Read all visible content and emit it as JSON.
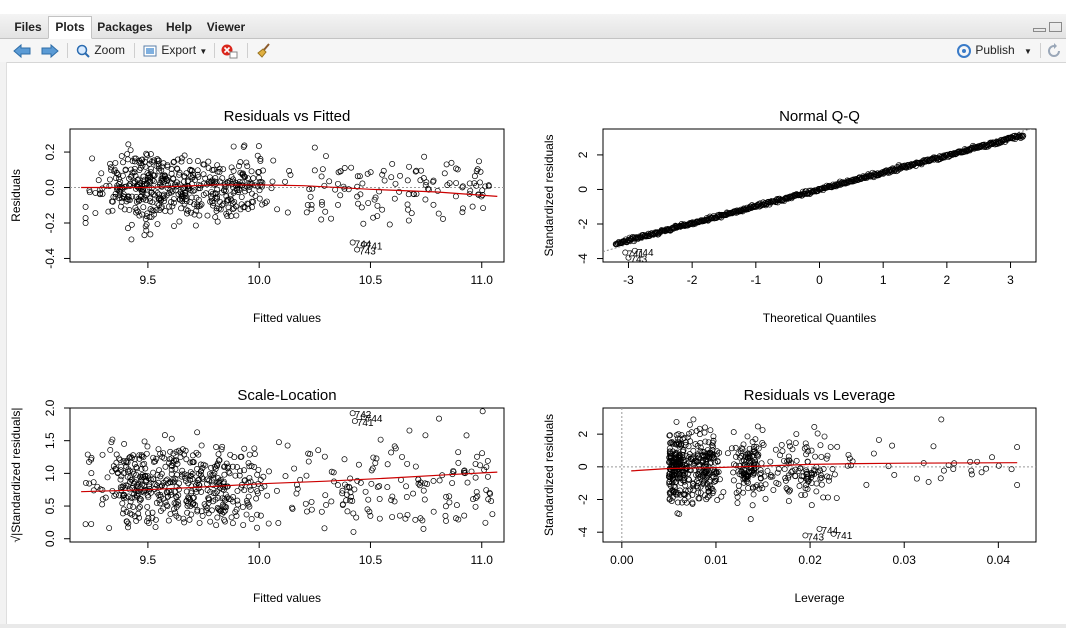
{
  "tabs": [
    {
      "label": "Files",
      "active": false
    },
    {
      "label": "Plots",
      "active": true
    },
    {
      "label": "Packages",
      "active": false
    },
    {
      "label": "Help",
      "active": false
    },
    {
      "label": "Viewer",
      "active": false
    }
  ],
  "toolbar": {
    "back_icon": "arrow-left-icon",
    "forward_icon": "arrow-right-icon",
    "zoom_label": "Zoom",
    "export_label": "Export",
    "remove_icon": "remove-plot-icon",
    "clear_icon": "broom-icon",
    "publish_label": "Publish",
    "refresh_icon": "refresh-icon"
  },
  "colors": {
    "points": "#000000",
    "smooth": "#cc0000",
    "refline": "#999999"
  },
  "chart_data": [
    {
      "type": "scatter",
      "title": "Residuals vs Fitted",
      "xlabel": "Fitted values",
      "ylabel": "Residuals",
      "xlim": [
        9.15,
        11.1
      ],
      "ylim": [
        -0.42,
        0.33
      ],
      "xticks": [
        "9.5",
        "10.0",
        "10.5",
        "11.0"
      ],
      "yticks": [
        "-0.4",
        "-0.2",
        "0.0",
        "0.2"
      ],
      "labels": [
        "744",
        "741",
        "743"
      ],
      "smooth": [
        [
          9.2,
          0.0
        ],
        [
          9.5,
          0.0
        ],
        [
          9.8,
          0.015
        ],
        [
          10.0,
          0.015
        ],
        [
          10.2,
          0.01
        ],
        [
          10.5,
          -0.01
        ],
        [
          10.8,
          -0.025
        ],
        [
          11.07,
          -0.05
        ]
      ],
      "refline": 0
    },
    {
      "type": "scatter",
      "title": "Normal Q-Q",
      "xlabel": "Theoretical Quantiles",
      "ylabel": "Standardized residuals",
      "xlim": [
        -3.4,
        3.4
      ],
      "ylim": [
        -4.2,
        3.5
      ],
      "xticks": [
        "-3",
        "-2",
        "-1",
        "0",
        "1",
        "2",
        "3"
      ],
      "yticks": [
        "-4",
        "-2",
        "0",
        "2"
      ],
      "labels": [
        "741",
        "744",
        "743"
      ]
    },
    {
      "type": "scatter",
      "title": "Scale-Location",
      "xlabel": "Fitted values",
      "ylabel": "√|Standardized residuals|",
      "xlim": [
        9.15,
        11.1
      ],
      "ylim": [
        -0.05,
        2.0
      ],
      "xticks": [
        "9.5",
        "10.0",
        "10.5",
        "11.0"
      ],
      "yticks": [
        "0.0",
        "0.5",
        "1.0",
        "1.5",
        "2.0"
      ],
      "labels": [
        "742",
        "744",
        "741"
      ],
      "smooth": [
        [
          9.2,
          0.72
        ],
        [
          9.5,
          0.75
        ],
        [
          9.8,
          0.8
        ],
        [
          10.0,
          0.84
        ],
        [
          10.3,
          0.88
        ],
        [
          10.6,
          0.93
        ],
        [
          10.85,
          0.98
        ],
        [
          11.07,
          1.02
        ]
      ]
    },
    {
      "type": "scatter",
      "title": "Residuals vs Leverage",
      "xlabel": "Leverage",
      "ylabel": "Standardized residuals",
      "xlim": [
        -0.002,
        0.044
      ],
      "ylim": [
        -4.6,
        3.6
      ],
      "xticks": [
        "0.00",
        "0.01",
        "0.02",
        "0.03",
        "0.04"
      ],
      "yticks": [
        "-4",
        "-2",
        "0",
        "2"
      ],
      "labels": [
        "744",
        "743",
        "741"
      ],
      "smooth": [
        [
          0.001,
          -0.25
        ],
        [
          0.005,
          -0.1
        ],
        [
          0.01,
          -0.05
        ],
        [
          0.015,
          0.05
        ],
        [
          0.02,
          0.15
        ],
        [
          0.025,
          0.2
        ],
        [
          0.03,
          0.22
        ],
        [
          0.042,
          0.25
        ]
      ],
      "refline": 0
    }
  ]
}
